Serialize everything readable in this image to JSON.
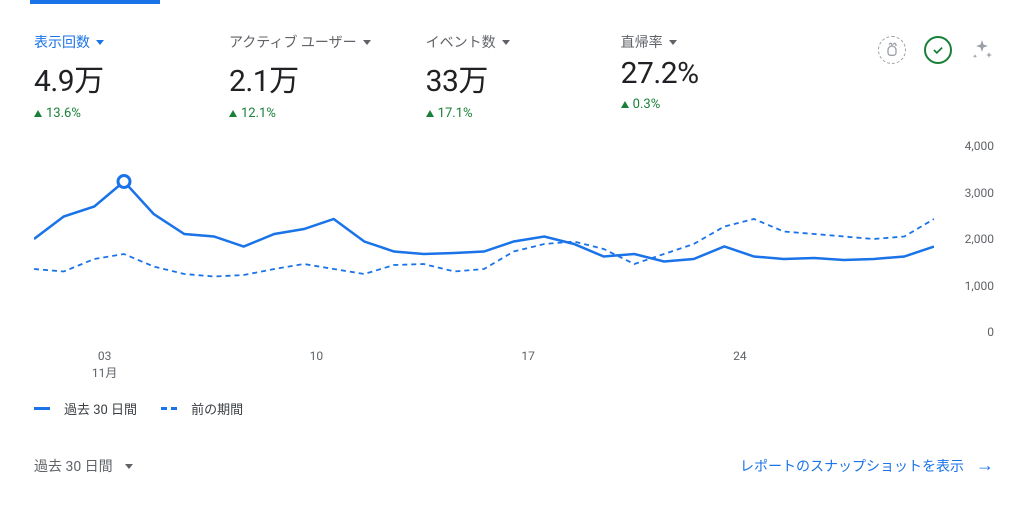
{
  "metrics": [
    {
      "label": "表示回数",
      "value": "4.9万",
      "delta": "13.6%",
      "active": true
    },
    {
      "label": "アクティブ ユーザー",
      "value": "2.1万",
      "delta": "12.1%",
      "active": false
    },
    {
      "label": "イベント数",
      "value": "33万",
      "delta": "17.1%",
      "active": false
    },
    {
      "label": "直帰率",
      "value": "27.2%",
      "delta": "0.3%",
      "active": false
    }
  ],
  "chart": {
    "type": "line",
    "ylim": [
      0,
      4000
    ],
    "ytick_step": 1000,
    "yticks": [
      "4,000",
      "3,000",
      "2,000",
      "1,000",
      "0"
    ],
    "xticks": [
      {
        "label": "03",
        "pos": 0.078
      },
      {
        "label": "10",
        "pos": 0.312
      },
      {
        "label": "17",
        "pos": 0.546
      },
      {
        "label": "24",
        "pos": 0.78
      }
    ],
    "month_label": "11月",
    "month_pos": 0.078,
    "series_current": {
      "label": "過去 30 日間",
      "color": "#1a73e8",
      "line_width": 2.5,
      "dash": "none",
      "points": [
        [
          0.0,
          2000
        ],
        [
          0.033,
          2450
        ],
        [
          0.067,
          2650
        ],
        [
          0.1,
          3150
        ],
        [
          0.133,
          2500
        ],
        [
          0.167,
          2100
        ],
        [
          0.2,
          2050
        ],
        [
          0.233,
          1850
        ],
        [
          0.267,
          2100
        ],
        [
          0.3,
          2200
        ],
        [
          0.333,
          2400
        ],
        [
          0.367,
          1950
        ],
        [
          0.4,
          1750
        ],
        [
          0.433,
          1700
        ],
        [
          0.467,
          1720
        ],
        [
          0.5,
          1750
        ],
        [
          0.533,
          1950
        ],
        [
          0.567,
          2050
        ],
        [
          0.6,
          1900
        ],
        [
          0.633,
          1650
        ],
        [
          0.667,
          1700
        ],
        [
          0.7,
          1550
        ],
        [
          0.733,
          1600
        ],
        [
          0.767,
          1850
        ],
        [
          0.8,
          1650
        ],
        [
          0.833,
          1600
        ],
        [
          0.867,
          1620
        ],
        [
          0.9,
          1580
        ],
        [
          0.933,
          1600
        ],
        [
          0.967,
          1650
        ],
        [
          1.0,
          1850
        ]
      ],
      "marker": {
        "x": 0.1,
        "y": 3150,
        "r": 6
      }
    },
    "series_previous": {
      "label": "前の期間",
      "color": "#1a73e8",
      "line_width": 1.8,
      "dash": "5,4",
      "points": [
        [
          0.0,
          1400
        ],
        [
          0.033,
          1350
        ],
        [
          0.067,
          1600
        ],
        [
          0.1,
          1700
        ],
        [
          0.133,
          1450
        ],
        [
          0.167,
          1300
        ],
        [
          0.2,
          1250
        ],
        [
          0.233,
          1280
        ],
        [
          0.267,
          1400
        ],
        [
          0.3,
          1500
        ],
        [
          0.333,
          1400
        ],
        [
          0.367,
          1300
        ],
        [
          0.4,
          1480
        ],
        [
          0.433,
          1500
        ],
        [
          0.467,
          1350
        ],
        [
          0.5,
          1400
        ],
        [
          0.533,
          1750
        ],
        [
          0.567,
          1900
        ],
        [
          0.6,
          1950
        ],
        [
          0.633,
          1800
        ],
        [
          0.667,
          1500
        ],
        [
          0.7,
          1700
        ],
        [
          0.733,
          1900
        ],
        [
          0.767,
          2250
        ],
        [
          0.8,
          2400
        ],
        [
          0.833,
          2150
        ],
        [
          0.867,
          2100
        ],
        [
          0.9,
          2050
        ],
        [
          0.933,
          2000
        ],
        [
          0.967,
          2050
        ],
        [
          1.0,
          2400
        ]
      ]
    },
    "background_color": "#ffffff"
  },
  "legend": {
    "current": "過去 30 日間",
    "previous": "前の期間"
  },
  "footer": {
    "range": "過去 30 日間",
    "snapshot_link": "レポートのスナップショットを表示"
  }
}
